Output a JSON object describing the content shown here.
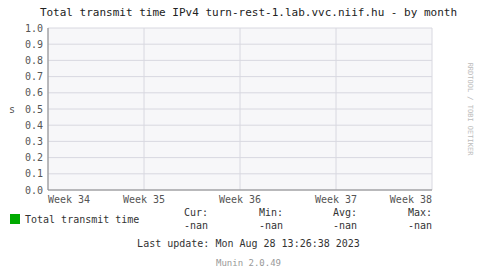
{
  "chart_data": {
    "type": "line",
    "title": "Total transmit time IPv4 turn-rest-1.lab.vvc.niif.hu - by month",
    "y_label": "s",
    "categories": [
      "Week 34",
      "Week 35",
      "Week 36",
      "Week 37",
      "Week 38"
    ],
    "series": [
      {
        "name": "Total transmit time",
        "color": "#00aa00",
        "values": [
          null,
          null,
          null,
          null,
          null
        ]
      }
    ],
    "ylim": [
      0.0,
      1.0
    ],
    "yticks": [
      {
        "value": 0.0,
        "label": "0.0"
      },
      0.1,
      0.2,
      0.3,
      0.4,
      0.5,
      0.6,
      0.7,
      0.8,
      0.9,
      {
        "value": 1.0,
        "label": "1.0"
      }
    ],
    "grid": true,
    "legend": "bottom",
    "stats": [
      {
        "label": "Cur:",
        "value": "-nan"
      },
      {
        "label": "Min:",
        "value": "-nan"
      },
      {
        "label": "Avg:",
        "value": "-nan"
      },
      {
        "label": "Max:",
        "value": "-nan"
      }
    ],
    "annotations": [
      "Last update: Mon Aug 28 13:26:38 2023",
      "Munin 2.0.49",
      "RRDTOOL / TOBI OETIKER"
    ]
  }
}
